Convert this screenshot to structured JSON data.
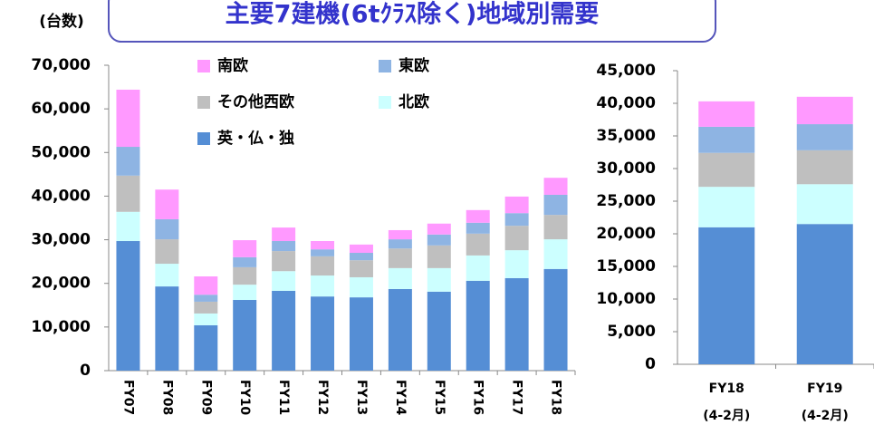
{
  "title": "主要7建機(6tｸﾗｽ除く)地域別需要",
  "unit_label": "(台数)",
  "chart_data": [
    {
      "type": "stacked_bar",
      "categories": [
        "FY07",
        "FY08",
        "FY09",
        "FY10",
        "FY11",
        "FY12",
        "FY13",
        "FY14",
        "FY15",
        "FY16",
        "FY17",
        "FY18"
      ],
      "series": [
        {
          "name": "英・仏・独",
          "color": "#558ed5",
          "values": [
            29700,
            19300,
            10400,
            16200,
            18300,
            17000,
            16800,
            18700,
            18100,
            20600,
            21200,
            23300
          ]
        },
        {
          "name": "北欧",
          "color": "#ccffff",
          "values": [
            6700,
            5200,
            2700,
            3500,
            4500,
            4800,
            4600,
            4800,
            5400,
            5800,
            6400,
            6800
          ]
        },
        {
          "name": "その他西欧",
          "color": "#bfbfbf",
          "values": [
            8300,
            5600,
            2700,
            4000,
            4600,
            4400,
            3900,
            4500,
            5200,
            5000,
            5600,
            5600
          ]
        },
        {
          "name": "東欧",
          "color": "#8eb4e3",
          "values": [
            6600,
            4600,
            1600,
            2300,
            2300,
            1600,
            1700,
            2100,
            2500,
            2500,
            2900,
            4600
          ]
        },
        {
          "name": "南欧",
          "color": "#ff99ff",
          "values": [
            13100,
            6800,
            4200,
            3900,
            3100,
            1900,
            1900,
            2100,
            2500,
            2900,
            3800,
            3900
          ]
        }
      ],
      "ylim": [
        0,
        70000
      ],
      "yticks": [
        0,
        {
          "value": 10000,
          "label": "10,000"
        },
        {
          "value": 20000,
          "label": "20,000"
        },
        {
          "value": 30000,
          "label": "30,000"
        },
        {
          "value": 40000,
          "label": "40,000"
        },
        {
          "value": 50000,
          "label": "50,000"
        },
        {
          "value": 60000,
          "label": "60,000"
        },
        {
          "value": 70000,
          "label": "70,000"
        }
      ]
    },
    {
      "type": "stacked_bar",
      "categories": [
        "FY18",
        "FY19"
      ],
      "sublabels": [
        "(4-2月)",
        "(4-2月)"
      ],
      "series": [
        {
          "color": "#558ed5",
          "values": [
            21000,
            21500
          ]
        },
        {
          "color": "#ccffff",
          "values": [
            6200,
            6100
          ]
        },
        {
          "color": "#bfbfbf",
          "values": [
            5200,
            5200
          ]
        },
        {
          "color": "#8eb4e3",
          "values": [
            4000,
            4000
          ]
        },
        {
          "color": "#ff99ff",
          "values": [
            3900,
            4200
          ]
        }
      ],
      "ylim": [
        0,
        45000
      ],
      "yticks": [
        0,
        {
          "value": 5000,
          "label": "5,000"
        },
        {
          "value": 10000,
          "label": "10,000"
        },
        {
          "value": 15000,
          "label": "15,000"
        },
        {
          "value": 20000,
          "label": "20,000"
        },
        {
          "value": 25000,
          "label": "25,000"
        },
        {
          "value": 30000,
          "label": "30,000"
        },
        {
          "value": 35000,
          "label": "35,000"
        },
        {
          "value": 40000,
          "label": "40,000"
        },
        {
          "value": 45000,
          "label": "45,000"
        }
      ]
    }
  ]
}
